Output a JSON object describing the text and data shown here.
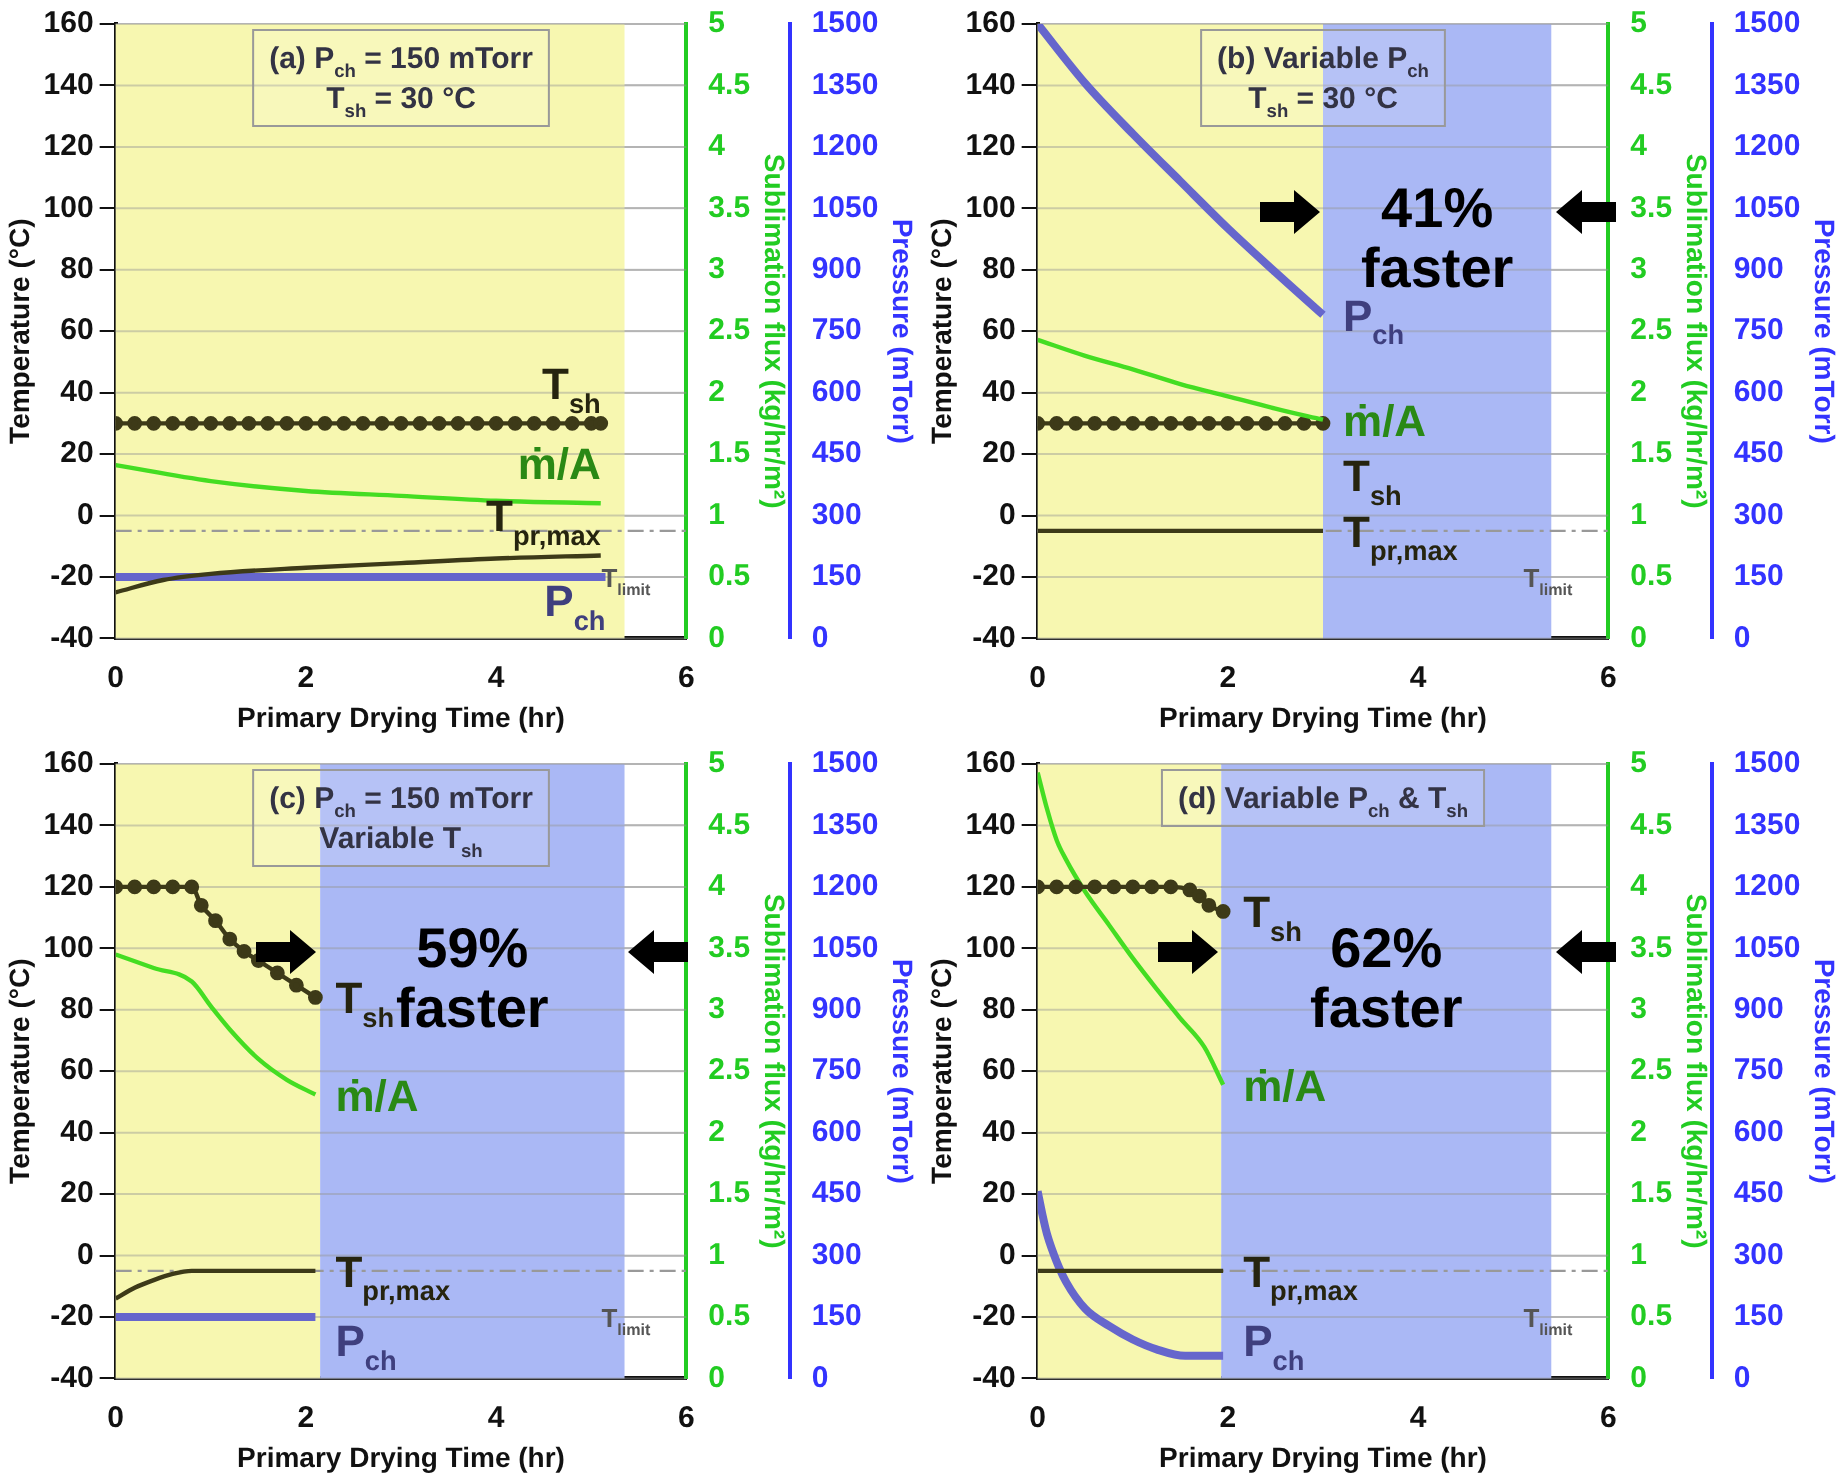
{
  "chart_data": [
    {
      "type": "line",
      "xlabel": "Primary Drying Time (hr)",
      "ylabel": "Temperature (°C)",
      "y2label": "Sublimation flux (kg/hr/m²)",
      "y3label": "Pressure (mTorr)",
      "xlim": [
        0,
        6
      ],
      "xticks": [
        0,
        2,
        4,
        6
      ],
      "ylim": [
        -40,
        160
      ],
      "yticks": [
        -40,
        -20,
        0,
        20,
        40,
        60,
        80,
        100,
        120,
        140,
        160
      ],
      "y2lim": [
        0,
        5
      ],
      "y2ticks": [
        0,
        0.5,
        1,
        1.5,
        2,
        2.5,
        3,
        3.5,
        4,
        4.5,
        5
      ],
      "y3lim": [
        0,
        1500
      ],
      "y3ticks": [
        0,
        150,
        300,
        450,
        600,
        750,
        900,
        1050,
        1200,
        1350,
        1500
      ],
      "grid": "y",
      "annotations": [
        "(a) P$_{ch}$ = 150 mTorr",
        "T$_{sh}$ = 30 °C"
      ],
      "bands": [
        {
          "axis": "x",
          "from": 0,
          "to": 5.35,
          "color": "#f7f7b0"
        }
      ],
      "ref_lines": [
        {
          "axis": "y",
          "value": -5,
          "label": "T$_{limit}$",
          "color": "#999999",
          "line_style": "dashed"
        }
      ],
      "series": [
        {
          "name": "T$_{sh}$",
          "color": "#3d3a18",
          "marker": "circle",
          "x": [
            0,
            0.2,
            0.4,
            0.6,
            0.8,
            1,
            1.2,
            1.4,
            1.6,
            1.8,
            2,
            2.2,
            2.4,
            2.6,
            2.8,
            3,
            3.2,
            3.4,
            3.6,
            3.8,
            4,
            4.2,
            4.4,
            4.6,
            4.8,
            5,
            5.1
          ],
          "values": [
            30,
            30,
            30,
            30,
            30,
            30,
            30,
            30,
            30,
            30,
            30,
            30,
            30,
            30,
            30,
            30,
            30,
            30,
            30,
            30,
            30,
            30,
            30,
            30,
            30,
            30,
            30
          ]
        },
        {
          "name": "ṁ/A",
          "color": "#44dd22",
          "axis": "y2",
          "x": [
            0,
            1,
            2,
            3,
            4,
            5.1
          ],
          "values": [
            1.41,
            1.28,
            1.2,
            1.16,
            1.12,
            1.1
          ]
        },
        {
          "name": "T$_{pr,max}$",
          "color": "#3d3a18",
          "x": [
            0,
            0.5,
            1,
            2,
            3,
            4,
            5.1
          ],
          "values": [
            -25,
            -21,
            -19,
            -17,
            -15.5,
            -14,
            -13
          ]
        },
        {
          "name": "P$_{ch}$",
          "color": "#6666cc",
          "axis": "y3",
          "x": [
            0,
            5.15
          ],
          "values": [
            150,
            150
          ]
        }
      ]
    },
    {
      "type": "line",
      "xlabel": "Primary Drying Time (hr)",
      "ylabel": "Temperature (°C)",
      "y2label": "Sublimation flux (kg/hr/m²)",
      "y3label": "Pressure (mTorr)",
      "xlim": [
        0,
        6
      ],
      "xticks": [
        0,
        2,
        4,
        6
      ],
      "ylim": [
        -40,
        160
      ],
      "yticks": [
        -40,
        -20,
        0,
        20,
        40,
        60,
        80,
        100,
        120,
        140,
        160
      ],
      "y2lim": [
        0,
        5
      ],
      "y2ticks": [
        0,
        0.5,
        1,
        1.5,
        2,
        2.5,
        3,
        3.5,
        4,
        4.5,
        5
      ],
      "y3lim": [
        0,
        1500
      ],
      "y3ticks": [
        0,
        150,
        300,
        450,
        600,
        750,
        900,
        1050,
        1200,
        1350,
        1500
      ],
      "grid": "y",
      "annotations": [
        "(b) Variable P$_{ch}$",
        "T$_{sh}$ = 30 °C"
      ],
      "bands": [
        {
          "axis": "x",
          "from": 0,
          "to": 3,
          "color": "#f7f7b0"
        },
        {
          "axis": "x",
          "from": 3,
          "to": 5.4,
          "label": "41% faster",
          "color": "#aab8f5"
        }
      ],
      "ref_lines": [
        {
          "axis": "y",
          "value": -5,
          "label": "T$_{limit}$",
          "color": "#999999",
          "line_style": "dashed"
        }
      ],
      "series": [
        {
          "name": "P$_{ch}$",
          "color": "#6666cc",
          "axis": "y3",
          "x": [
            0,
            0.5,
            1,
            1.5,
            2,
            2.5,
            3
          ],
          "values": [
            1500,
            1355,
            1232,
            1116,
            1001,
            894,
            790
          ]
        },
        {
          "name": "ṁ/A",
          "color": "#44dd22",
          "axis": "y2",
          "x": [
            0,
            0.5,
            1,
            1.5,
            2,
            2.5,
            3
          ],
          "values": [
            2.43,
            2.3,
            2.19,
            2.07,
            1.97,
            1.87,
            1.78
          ]
        },
        {
          "name": "T$_{sh}$",
          "color": "#3d3a18",
          "marker": "circle",
          "x": [
            0,
            0.2,
            0.4,
            0.6,
            0.8,
            1,
            1.2,
            1.4,
            1.6,
            1.8,
            2,
            2.2,
            2.4,
            2.6,
            2.8,
            3
          ],
          "values": [
            30,
            30,
            30,
            30,
            30,
            30,
            30,
            30,
            30,
            30,
            30,
            30,
            30,
            30,
            30,
            30
          ]
        },
        {
          "name": "T$_{pr,max}$",
          "color": "#3d3a18",
          "x": [
            0,
            3
          ],
          "values": [
            -5,
            -5
          ]
        }
      ]
    },
    {
      "type": "line",
      "xlabel": "Primary Drying Time (hr)",
      "ylabel": "Temperature (°C)",
      "y2label": "Sublimation flux (kg/hr/m²)",
      "y3label": "Pressure (mTorr)",
      "xlim": [
        0,
        6
      ],
      "xticks": [
        0,
        2,
        4,
        6
      ],
      "ylim": [
        -40,
        160
      ],
      "yticks": [
        -40,
        -20,
        0,
        20,
        40,
        60,
        80,
        100,
        120,
        140,
        160
      ],
      "y2lim": [
        0,
        5
      ],
      "y2ticks": [
        0,
        0.5,
        1,
        1.5,
        2,
        2.5,
        3,
        3.5,
        4,
        4.5,
        5
      ],
      "y3lim": [
        0,
        1500
      ],
      "y3ticks": [
        0,
        150,
        300,
        450,
        600,
        750,
        900,
        1050,
        1200,
        1350,
        1500
      ],
      "grid": "y",
      "annotations": [
        "(c) P$_{ch}$ = 150 mTorr",
        "Variable T$_{sh}$"
      ],
      "bands": [
        {
          "axis": "x",
          "from": 0,
          "to": 2.15,
          "color": "#f7f7b0"
        },
        {
          "axis": "x",
          "from": 2.15,
          "to": 5.35,
          "label": "59% faster",
          "color": "#aab8f5"
        }
      ],
      "ref_lines": [
        {
          "axis": "y",
          "value": -5,
          "label": "T$_{limit}$",
          "color": "#999999",
          "line_style": "dashed"
        }
      ],
      "series": [
        {
          "name": "T$_{sh}$",
          "color": "#3d3a18",
          "marker": "circle",
          "x": [
            0,
            0.2,
            0.4,
            0.6,
            0.8,
            0.9,
            1.05,
            1.2,
            1.35,
            1.5,
            1.7,
            1.9,
            2.1
          ],
          "values": [
            120,
            120,
            120,
            120,
            120,
            114,
            109,
            103,
            99,
            96,
            92,
            88,
            84
          ]
        },
        {
          "name": "ṁ/A",
          "color": "#44dd22",
          "axis": "y2",
          "x": [
            0,
            0.4,
            0.8,
            1,
            1.2,
            1.5,
            1.8,
            2.1
          ],
          "values": [
            3.45,
            3.34,
            3.23,
            3.03,
            2.84,
            2.6,
            2.43,
            2.31
          ]
        },
        {
          "name": "T$_{pr,max}$",
          "color": "#3d3a18",
          "x": [
            0,
            0.2,
            0.4,
            0.6,
            0.8,
            2.1
          ],
          "values": [
            -14,
            -10.5,
            -8,
            -6,
            -5,
            -5
          ]
        },
        {
          "name": "P$_{ch}$",
          "color": "#6666cc",
          "axis": "y3",
          "x": [
            0,
            2.1
          ],
          "values": [
            150,
            150
          ]
        }
      ]
    },
    {
      "type": "line",
      "xlabel": "Primary Drying Time (hr)",
      "ylabel": "Temperature (°C)",
      "y2label": "Sublimation flux (kg/hr/m²)",
      "y3label": "Pressure (mTorr)",
      "xlim": [
        0,
        6
      ],
      "xticks": [
        0,
        2,
        4,
        6
      ],
      "ylim": [
        -40,
        160
      ],
      "yticks": [
        -40,
        -20,
        0,
        20,
        40,
        60,
        80,
        100,
        120,
        140,
        160
      ],
      "y2lim": [
        0,
        5
      ],
      "y2ticks": [
        0,
        0.5,
        1,
        1.5,
        2,
        2.5,
        3,
        3.5,
        4,
        4.5,
        5
      ],
      "y3lim": [
        0,
        1500
      ],
      "y3ticks": [
        0,
        150,
        300,
        450,
        600,
        750,
        900,
        1050,
        1200,
        1350,
        1500
      ],
      "grid": "y",
      "annotations": [
        "(d) Variable P$_{ch}$ & T$_{sh}$"
      ],
      "bands": [
        {
          "axis": "x",
          "from": 0,
          "to": 1.93,
          "color": "#f7f7b0"
        },
        {
          "axis": "x",
          "from": 1.93,
          "to": 5.4,
          "label": "62% faster",
          "color": "#aab8f5"
        }
      ],
      "ref_lines": [
        {
          "axis": "y",
          "value": -5,
          "label": "T$_{limit}$",
          "color": "#999999",
          "line_style": "dashed"
        }
      ],
      "series": [
        {
          "name": "T$_{sh}$",
          "color": "#3d3a18",
          "marker": "circle",
          "x": [
            0,
            0.2,
            0.4,
            0.6,
            0.8,
            1,
            1.2,
            1.4,
            1.6,
            1.7,
            1.8,
            1.95
          ],
          "values": [
            120,
            120,
            120,
            120,
            120,
            120,
            120,
            120,
            119,
            117,
            114,
            112
          ]
        },
        {
          "name": "ṁ/A",
          "color": "#44dd22",
          "axis": "y2",
          "x": [
            0,
            0.1,
            0.2,
            0.3,
            0.5,
            0.75,
            1,
            1.25,
            1.5,
            1.75,
            1.95
          ],
          "values": [
            4.93,
            4.63,
            4.38,
            4.22,
            3.96,
            3.69,
            3.42,
            3.17,
            2.93,
            2.7,
            2.39
          ]
        },
        {
          "name": "T$_{pr,max}$",
          "color": "#3d3a18",
          "x": [
            0,
            1.95
          ],
          "values": [
            -5,
            -5
          ]
        },
        {
          "name": "P$_{ch}$",
          "color": "#6666cc",
          "axis": "y3",
          "x": [
            0,
            0.05,
            0.1,
            0.2,
            0.3,
            0.5,
            0.75,
            1,
            1.25,
            1.55,
            1.95
          ],
          "values": [
            457,
            400,
            351,
            285,
            235,
            170,
            128,
            95,
            71,
            55,
            55
          ]
        }
      ]
    }
  ]
}
